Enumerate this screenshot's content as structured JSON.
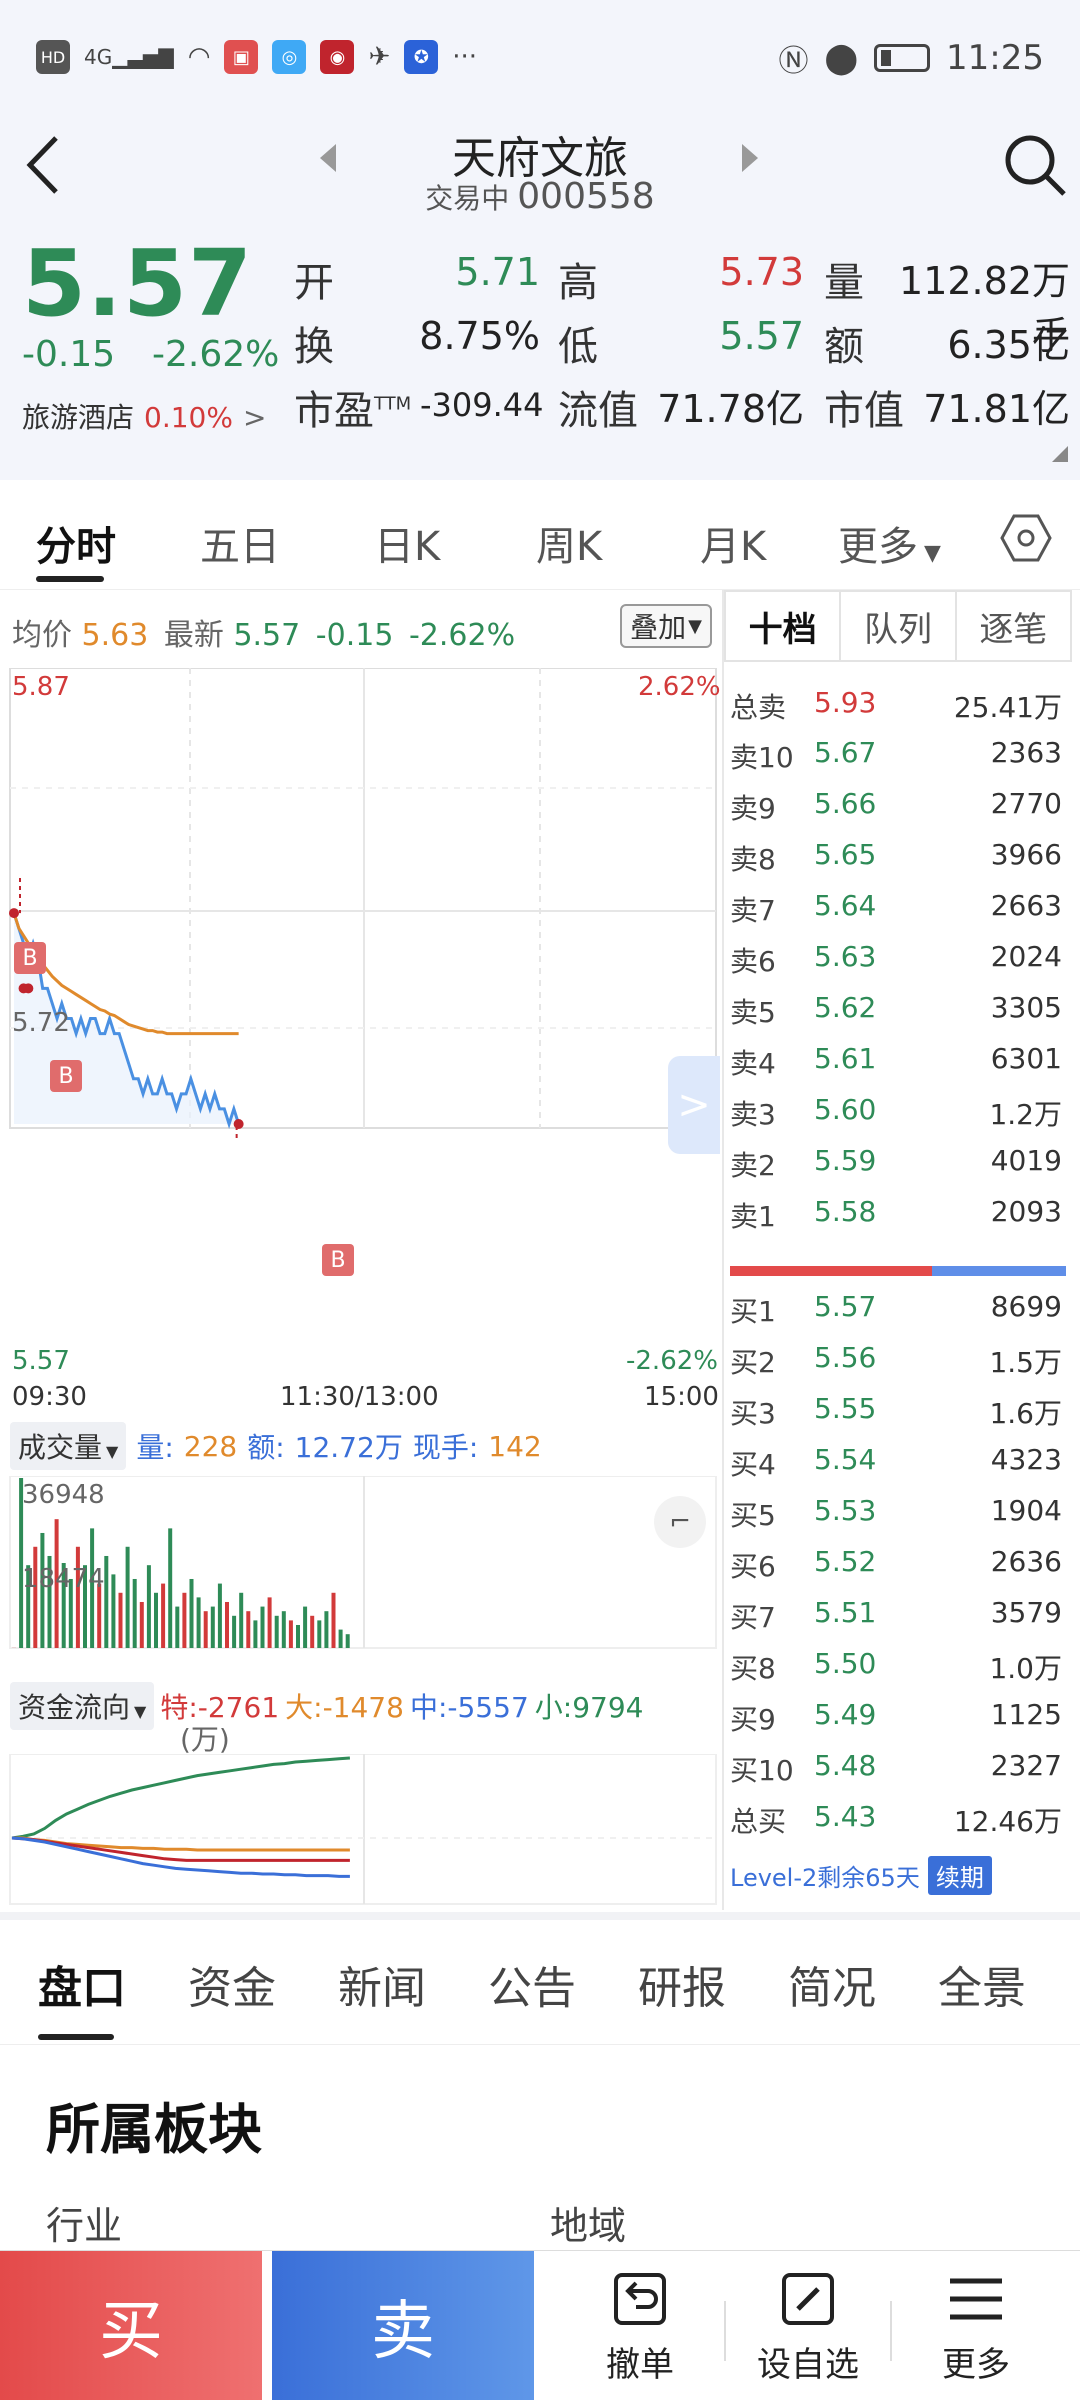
{
  "status_bar": {
    "left_icons": [
      "HD",
      "4G",
      "signal",
      "wifi",
      "app",
      "app",
      "app",
      "app",
      "app",
      "..."
    ],
    "time": "11:25"
  },
  "header": {
    "title": "天府文旅",
    "status": "交易中",
    "code": "000558"
  },
  "quote": {
    "price": "5.57",
    "change": "-0.15",
    "change_pct": "-2.62%",
    "sector_name": "旅游酒店",
    "sector_change": "0.10%",
    "fields": {
      "open_label": "开",
      "open": "5.71",
      "high_label": "高",
      "high": "5.73",
      "volume_label": "量",
      "volume": "112.82万手",
      "turnover_label": "换",
      "turnover": "8.75%",
      "low_label": "低",
      "low": "5.57",
      "amount_label": "额",
      "amount": "6.35亿",
      "pe_label": "市盈",
      "pe_sup": "TTM",
      "pe": "-309.44",
      "float_cap_label": "流值",
      "float_cap": "71.78亿",
      "mkt_cap_label": "市值",
      "mkt_cap": "71.81亿"
    }
  },
  "chart_tabs": [
    "分时",
    "五日",
    "日K",
    "周K",
    "月K",
    "更多"
  ],
  "intraday": {
    "avg_label": "均价",
    "avg": "5.63",
    "latest_label": "最新",
    "latest": "5.57",
    "change": "-0.15",
    "change_pct": "-2.62%",
    "overlay_label": "叠加",
    "y_top": "5.87",
    "y_top_pct": "2.62%",
    "y_mid": "5.72",
    "y_bottom": "5.57",
    "y_bottom_pct": "-2.62%",
    "x_start": "09:30",
    "x_mid": "11:30/13:00",
    "x_end": "15:00",
    "b_marker": "B",
    "volume_panel": {
      "label": "成交量",
      "vol_label": "量:",
      "vol": "228",
      "amt_label": "额:",
      "amt": "12.72万",
      "hand_label": "现手:",
      "hand": "142",
      "y_max": "36948",
      "y_mid": "18474"
    },
    "fund_panel": {
      "label": "资金流向",
      "special_label": "特:",
      "special": "-2761",
      "large_label": "大:",
      "large": "-1478",
      "medium_label": "中:",
      "medium": "-5557",
      "small_label": "小:",
      "small": "9794",
      "unit": "(万)"
    }
  },
  "chart_data": {
    "type": "line",
    "title": "",
    "xlabel": "",
    "ylabel": "",
    "x_ticks": [
      "09:30",
      "11:30/13:00",
      "15:00"
    ],
    "ylim": [
      5.57,
      5.87
    ],
    "prev_close": 5.72,
    "series": [
      {
        "name": "最新",
        "color": "#4a90e2",
        "values": [
          5.71,
          5.7,
          5.69,
          5.68,
          5.69,
          5.68,
          5.66,
          5.66,
          5.65,
          5.64,
          5.65,
          5.64,
          5.64,
          5.63,
          5.64,
          5.63,
          5.64,
          5.64,
          5.63,
          5.63,
          5.64,
          5.63,
          5.63,
          5.62,
          5.61,
          5.6,
          5.6,
          5.59,
          5.6,
          5.59,
          5.59,
          5.6,
          5.59,
          5.59,
          5.58,
          5.59,
          5.59,
          5.6,
          5.59,
          5.58,
          5.59,
          5.58,
          5.59,
          5.58,
          5.58,
          5.57,
          5.58,
          5.57
        ]
      },
      {
        "name": "均价",
        "color": "#e08a2c",
        "values": [
          5.71,
          5.7,
          5.695,
          5.69,
          5.685,
          5.68,
          5.676,
          5.672,
          5.668,
          5.665,
          5.662,
          5.66,
          5.658,
          5.656,
          5.654,
          5.652,
          5.65,
          5.648,
          5.646,
          5.645,
          5.643,
          5.642,
          5.64,
          5.638,
          5.636,
          5.635,
          5.634,
          5.633,
          5.632,
          5.632,
          5.631,
          5.631,
          5.63,
          5.63,
          5.63,
          5.63,
          5.63,
          5.63,
          5.63,
          5.63,
          5.63,
          5.63,
          5.63,
          5.63,
          5.63,
          5.63,
          5.63,
          5.63
        ]
      }
    ],
    "volume_values": [
      30,
      36948,
      18000,
      22000,
      25000,
      20000,
      28000,
      18474,
      15000,
      22000,
      18000,
      26000,
      14000,
      20000,
      16000,
      12000,
      22000,
      15000,
      10000,
      18000,
      12000,
      14000,
      26000,
      9000,
      12000,
      15000,
      11000,
      8000,
      9000,
      14000,
      10000,
      7000,
      12000,
      8000,
      6000,
      9000,
      11000,
      7000,
      8000,
      6000,
      5000,
      9000,
      7000,
      6000,
      8000,
      12000,
      4000,
      3000
    ],
    "fund_flow": {
      "small": [
        0,
        0.02,
        0.05,
        0.12,
        0.22,
        0.3,
        0.36,
        0.42,
        0.47,
        0.52,
        0.56,
        0.6,
        0.63,
        0.66,
        0.69,
        0.72,
        0.75,
        0.78,
        0.8,
        0.82,
        0.84,
        0.86,
        0.88,
        0.9,
        0.92,
        0.93,
        0.95,
        0.96,
        0.97,
        0.98,
        0.99,
        1.0
      ],
      "large": [
        0,
        0,
        -0.02,
        -0.03,
        -0.05,
        -0.07,
        -0.08,
        -0.09,
        -0.1,
        -0.11,
        -0.12,
        -0.12,
        -0.13,
        -0.13,
        -0.14,
        -0.14,
        -0.14,
        -0.15,
        -0.15,
        -0.15,
        -0.15,
        -0.15,
        -0.15,
        -0.15,
        -0.15,
        -0.15,
        -0.15,
        -0.15,
        -0.15,
        -0.15,
        -0.15,
        -0.15
      ],
      "special": [
        0,
        -0.01,
        -0.02,
        -0.04,
        -0.06,
        -0.08,
        -0.1,
        -0.12,
        -0.14,
        -0.16,
        -0.18,
        -0.2,
        -0.22,
        -0.24,
        -0.26,
        -0.27,
        -0.28,
        -0.28,
        -0.28,
        -0.28,
        -0.28,
        -0.28,
        -0.28,
        -0.28,
        -0.28,
        -0.28,
        -0.28,
        -0.28,
        -0.28,
        -0.28,
        -0.28,
        -0.28
      ],
      "medium": [
        0,
        -0.01,
        -0.03,
        -0.05,
        -0.08,
        -0.11,
        -0.14,
        -0.17,
        -0.2,
        -0.23,
        -0.26,
        -0.29,
        -0.32,
        -0.34,
        -0.36,
        -0.38,
        -0.39,
        -0.4,
        -0.41,
        -0.42,
        -0.43,
        -0.44,
        -0.44,
        -0.45,
        -0.45,
        -0.46,
        -0.46,
        -0.47,
        -0.47,
        -0.47,
        -0.48,
        -0.48
      ]
    },
    "grid": true
  },
  "orderbook": {
    "tabs": [
      "十档",
      "队列",
      "逐笔"
    ],
    "total_sell": {
      "label": "总卖",
      "price": "5.93",
      "vol": "25.41万"
    },
    "asks": [
      {
        "label": "卖10",
        "price": "5.67",
        "vol": "2363"
      },
      {
        "label": "卖9",
        "price": "5.66",
        "vol": "2770"
      },
      {
        "label": "卖8",
        "price": "5.65",
        "vol": "3966"
      },
      {
        "label": "卖7",
        "price": "5.64",
        "vol": "2663"
      },
      {
        "label": "卖6",
        "price": "5.63",
        "vol": "2024"
      },
      {
        "label": "卖5",
        "price": "5.62",
        "vol": "3305"
      },
      {
        "label": "卖4",
        "price": "5.61",
        "vol": "6301"
      },
      {
        "label": "卖3",
        "price": "5.60",
        "vol": "1.2万"
      },
      {
        "label": "卖2",
        "price": "5.59",
        "vol": "4019"
      },
      {
        "label": "卖1",
        "price": "5.58",
        "vol": "2093"
      }
    ],
    "bids": [
      {
        "label": "买1",
        "price": "5.57",
        "vol": "8699"
      },
      {
        "label": "买2",
        "price": "5.56",
        "vol": "1.5万"
      },
      {
        "label": "买3",
        "price": "5.55",
        "vol": "1.6万"
      },
      {
        "label": "买4",
        "price": "5.54",
        "vol": "4323"
      },
      {
        "label": "买5",
        "price": "5.53",
        "vol": "1904"
      },
      {
        "label": "买6",
        "price": "5.52",
        "vol": "2636"
      },
      {
        "label": "买7",
        "price": "5.51",
        "vol": "3579"
      },
      {
        "label": "买8",
        "price": "5.50",
        "vol": "1.0万"
      },
      {
        "label": "买9",
        "price": "5.49",
        "vol": "1125"
      },
      {
        "label": "买10",
        "price": "5.48",
        "vol": "2327"
      }
    ],
    "total_buy": {
      "label": "总买",
      "price": "5.43",
      "vol": "12.46万"
    },
    "buy_sell_ratio": 0.6,
    "level2": "Level-2剩余65天",
    "renew": "续期"
  },
  "info_tabs": [
    "盘口",
    "资金",
    "新闻",
    "公告",
    "研报",
    "简况",
    "全景"
  ],
  "section": {
    "title": "所属板块",
    "industry": "行业",
    "region": "地域"
  },
  "actions": {
    "buy": "买",
    "sell": "卖",
    "cancel": "撤单",
    "watch": "设自选",
    "more": "更多"
  },
  "colors": {
    "up": "#d23a3a",
    "down": "#2e8b57",
    "avg": "#e08a2c",
    "price_line": "#4a90e2",
    "buy": "#e34a4a",
    "sell": "#3a6fd8"
  }
}
